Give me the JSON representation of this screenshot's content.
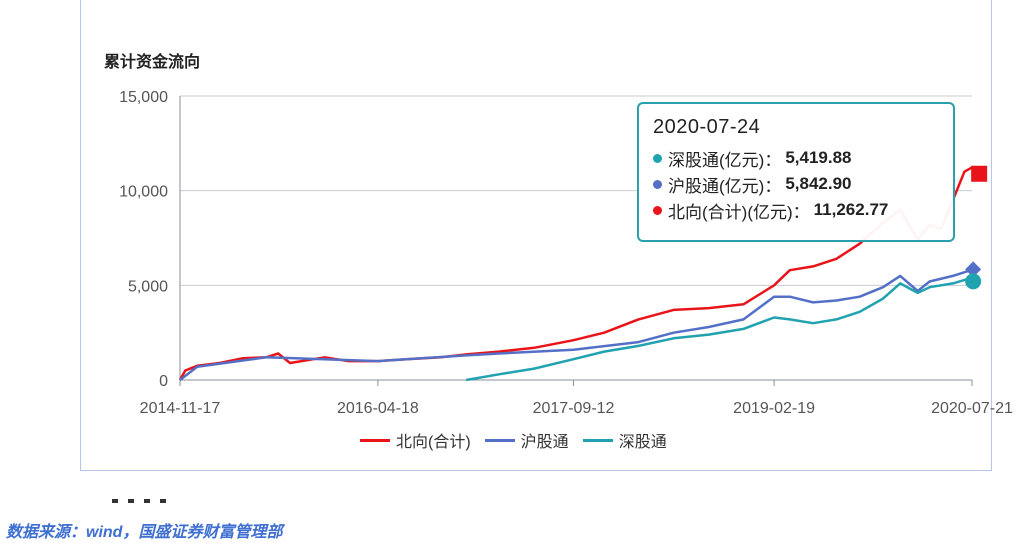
{
  "chart_data": {
    "type": "line",
    "title": "累计资金流向",
    "xlabel": "",
    "ylabel": "",
    "x_tick_labels": [
      "2014-11-17",
      "2016-04-18",
      "2017-09-12",
      "2019-02-19",
      "2020-07-21"
    ],
    "y_tick_labels": [
      "0",
      "5,000",
      "10,000",
      "15,000"
    ],
    "ylim": [
      0,
      15000
    ],
    "grid": "horizontal",
    "legend_position": "bottom",
    "series": [
      {
        "name": "北向(合计)",
        "color": "#e8141a",
        "points": [
          [
            "2014-11-17",
            0
          ],
          [
            "2014-12-01",
            500
          ],
          [
            "2015-01-01",
            750
          ],
          [
            "2015-03-01",
            900
          ],
          [
            "2015-05-01",
            1150
          ],
          [
            "2015-07-01",
            1200
          ],
          [
            "2015-08-01",
            1400
          ],
          [
            "2015-09-01",
            900
          ],
          [
            "2015-12-01",
            1200
          ],
          [
            "2016-02-01",
            1000
          ],
          [
            "2016-04-18",
            1000
          ],
          [
            "2016-07-01",
            1100
          ],
          [
            "2016-10-01",
            1200
          ],
          [
            "2016-12-05",
            1350
          ],
          [
            "2017-03-01",
            1500
          ],
          [
            "2017-06-01",
            1700
          ],
          [
            "2017-09-12",
            2100
          ],
          [
            "2017-12-01",
            2500
          ],
          [
            "2018-03-01",
            3200
          ],
          [
            "2018-06-01",
            3700
          ],
          [
            "2018-09-01",
            3800
          ],
          [
            "2018-12-01",
            4000
          ],
          [
            "2019-02-19",
            5000
          ],
          [
            "2019-04-01",
            5800
          ],
          [
            "2019-06-01",
            6000
          ],
          [
            "2019-08-01",
            6400
          ],
          [
            "2019-10-01",
            7200
          ],
          [
            "2019-12-01",
            8300
          ],
          [
            "2020-01-15",
            9000
          ],
          [
            "2020-03-01",
            7400
          ],
          [
            "2020-04-01",
            8200
          ],
          [
            "2020-05-01",
            8000
          ],
          [
            "2020-06-01",
            9500
          ],
          [
            "2020-07-01",
            11000
          ],
          [
            "2020-07-24",
            11262.77
          ]
        ]
      },
      {
        "name": "沪股通",
        "color": "#5470c6",
        "points": [
          [
            "2014-11-17",
            0
          ],
          [
            "2015-01-01",
            700
          ],
          [
            "2015-07-01",
            1200
          ],
          [
            "2016-04-18",
            1000
          ],
          [
            "2016-12-05",
            1300
          ],
          [
            "2017-03-01",
            1400
          ],
          [
            "2017-09-12",
            1600
          ],
          [
            "2018-03-01",
            2000
          ],
          [
            "2018-06-01",
            2500
          ],
          [
            "2018-09-01",
            2800
          ],
          [
            "2018-12-01",
            3200
          ],
          [
            "2019-02-19",
            4400
          ],
          [
            "2019-04-01",
            4400
          ],
          [
            "2019-06-01",
            4100
          ],
          [
            "2019-08-01",
            4200
          ],
          [
            "2019-10-01",
            4400
          ],
          [
            "2019-12-01",
            4900
          ],
          [
            "2020-01-15",
            5500
          ],
          [
            "2020-03-01",
            4700
          ],
          [
            "2020-04-01",
            5200
          ],
          [
            "2020-06-01",
            5500
          ],
          [
            "2020-07-24",
            5842.9
          ]
        ]
      },
      {
        "name": "深股通",
        "color": "#21a2b0",
        "points": [
          [
            "2016-12-05",
            0
          ],
          [
            "2017-03-01",
            300
          ],
          [
            "2017-06-01",
            600
          ],
          [
            "2017-09-12",
            1100
          ],
          [
            "2017-12-01",
            1500
          ],
          [
            "2018-03-01",
            1800
          ],
          [
            "2018-06-01",
            2200
          ],
          [
            "2018-09-01",
            2400
          ],
          [
            "2018-12-01",
            2700
          ],
          [
            "2019-02-19",
            3300
          ],
          [
            "2019-04-01",
            3200
          ],
          [
            "2019-06-01",
            3000
          ],
          [
            "2019-08-01",
            3200
          ],
          [
            "2019-10-01",
            3600
          ],
          [
            "2019-12-01",
            4300
          ],
          [
            "2020-01-15",
            5100
          ],
          [
            "2020-03-01",
            4600
          ],
          [
            "2020-04-01",
            4900
          ],
          [
            "2020-06-01",
            5100
          ],
          [
            "2020-07-24",
            5419.88
          ]
        ]
      }
    ],
    "tooltip": {
      "date": "2020-07-24",
      "rows": [
        {
          "label": "深股通(亿元)",
          "sep": "：",
          "value": "5,419.88",
          "color": "#21a2b0"
        },
        {
          "label": "沪股通(亿元)",
          "sep": "：",
          "value": "5,842.90",
          "color": "#5470c6"
        },
        {
          "label": "北向(合计)(亿元)",
          "sep": "：",
          "value": "11,262.77",
          "color": "#e8141a"
        }
      ]
    }
  },
  "legend": [
    {
      "label": "北向(合计)",
      "color": "#e8141a"
    },
    {
      "label": "沪股通",
      "color": "#5470c6"
    },
    {
      "label": "深股通",
      "color": "#21a2b0"
    }
  ],
  "source_note": "数据来源：wind，国盛证券财富管理部"
}
